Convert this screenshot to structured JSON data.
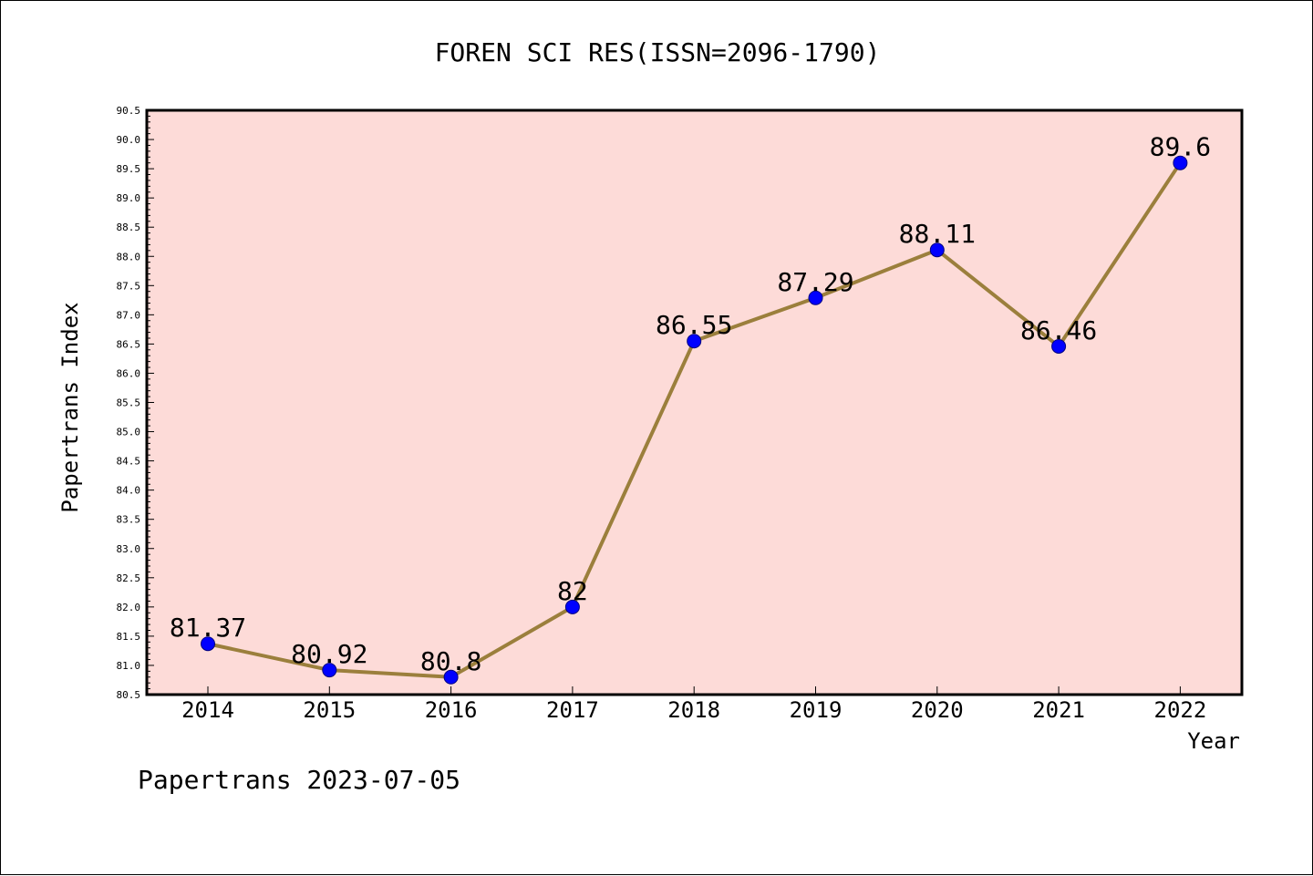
{
  "chart_data": {
    "type": "line",
    "title": "FOREN SCI RES(ISSN=2096-1790)",
    "xlabel": "Year",
    "ylabel": "Papertrans Index",
    "footer": "Papertrans 2023-07-05",
    "categories": [
      "2014",
      "2015",
      "2016",
      "2017",
      "2018",
      "2019",
      "2020",
      "2021",
      "2022"
    ],
    "series": [
      {
        "values": [
          81.37,
          80.92,
          80.8,
          82,
          86.55,
          87.29,
          88.11,
          86.46,
          89.6
        ],
        "labels": [
          "81.37",
          "80.92",
          "80.8",
          "82",
          "86.55",
          "87.29",
          "88.11",
          "86.46",
          "89.6"
        ]
      }
    ],
    "ylim": [
      80.5,
      90.5
    ],
    "yticks": [
      "80.5",
      "81.0",
      "81.5",
      "82.0",
      "82.5",
      "83.0",
      "83.5",
      "84.0",
      "84.5",
      "85.0",
      "85.5",
      "86.0",
      "86.5",
      "87.0",
      "87.5",
      "88.0",
      "88.5",
      "89.0",
      "89.5",
      "90.0",
      "90.5"
    ],
    "grid": false,
    "colors": {
      "plot_background": "#fddbd8",
      "line": "#9b7f3c",
      "marker": "#0000ff",
      "marker_edge": "#000080",
      "axis": "#000000"
    }
  }
}
